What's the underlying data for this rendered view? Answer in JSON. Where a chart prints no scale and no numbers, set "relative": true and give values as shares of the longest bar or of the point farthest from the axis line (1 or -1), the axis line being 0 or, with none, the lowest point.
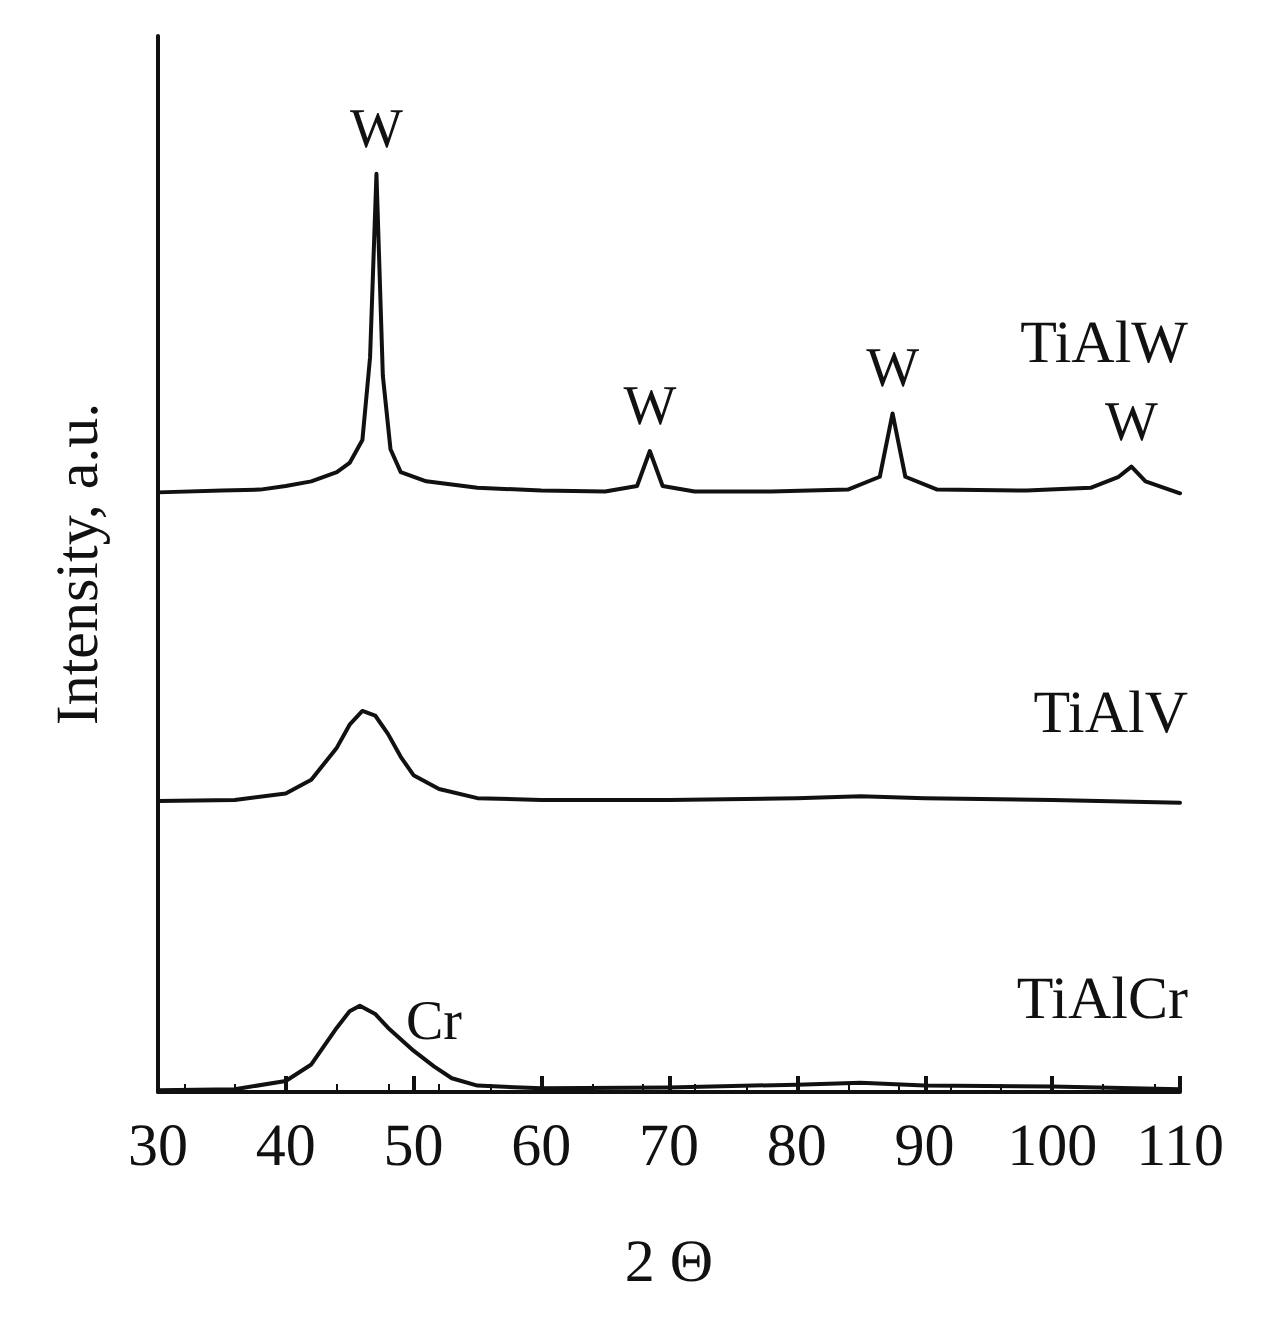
{
  "chart_data": {
    "type": "line",
    "relative": true,
    "xlabel": "2 Θ",
    "ylabel": "Intensity, a.u.",
    "xlim": [
      30,
      110
    ],
    "xticks": [
      30,
      40,
      50,
      60,
      70,
      80,
      90,
      100,
      110
    ],
    "grid": false,
    "legend": false,
    "marker": "none",
    "line_style": "solid",
    "series": [
      {
        "name": "TiAlW",
        "color": "#111111",
        "x": [
          30,
          35,
          38,
          40,
          42,
          44,
          45,
          46,
          46.6,
          47.1,
          47.6,
          48.2,
          49,
          51,
          55,
          60,
          65,
          67.5,
          68.5,
          69.5,
          72,
          78,
          84,
          86.5,
          87.5,
          88.5,
          91,
          98,
          103,
          105.2,
          106.2,
          107.3,
          110
        ],
        "values": [
          0.653,
          0.655,
          0.656,
          0.66,
          0.665,
          0.675,
          0.685,
          0.71,
          0.8,
          1.0,
          0.78,
          0.7,
          0.675,
          0.665,
          0.658,
          0.655,
          0.654,
          0.66,
          0.698,
          0.66,
          0.654,
          0.654,
          0.656,
          0.67,
          0.739,
          0.67,
          0.656,
          0.655,
          0.658,
          0.67,
          0.681,
          0.665,
          0.652
        ]
      },
      {
        "name": "TiAlV",
        "color": "#111111",
        "x": [
          30,
          36,
          40,
          42,
          44,
          45,
          46,
          47,
          48,
          49,
          50,
          52,
          55,
          60,
          70,
          80,
          85,
          90,
          100,
          110
        ],
        "values": [
          0.317,
          0.318,
          0.325,
          0.34,
          0.375,
          0.4,
          0.415,
          0.41,
          0.39,
          0.365,
          0.345,
          0.33,
          0.32,
          0.318,
          0.318,
          0.32,
          0.322,
          0.32,
          0.318,
          0.315
        ]
      },
      {
        "name": "TiAlCr",
        "color": "#111111",
        "x": [
          30,
          36,
          40,
          42,
          44,
          45,
          45.8,
          47,
          48,
          50,
          51.6,
          53,
          55,
          60,
          70,
          80,
          85,
          90,
          100,
          110
        ],
        "values": [
          0.002,
          0.003,
          0.012,
          0.03,
          0.07,
          0.088,
          0.094,
          0.085,
          0.07,
          0.045,
          0.028,
          0.015,
          0.007,
          0.004,
          0.005,
          0.008,
          0.01,
          0.007,
          0.006,
          0.003
        ]
      }
    ],
    "annotations": [
      {
        "text": "W",
        "x": 47.1,
        "y": 1.0
      },
      {
        "text": "W",
        "x": 68.5,
        "y": 0.698
      },
      {
        "text": "W",
        "x": 87.5,
        "y": 0.739
      },
      {
        "text": "W",
        "x": 106.2,
        "y": 0.681
      },
      {
        "text": "Cr",
        "x": 51.6,
        "y": 0.028
      }
    ]
  }
}
